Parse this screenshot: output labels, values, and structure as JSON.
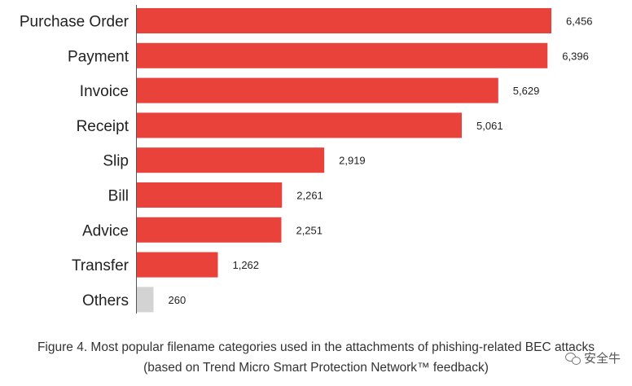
{
  "chart_data": {
    "type": "bar",
    "orientation": "horizontal",
    "categories": [
      "Purchase Order",
      "Payment",
      "Invoice",
      "Receipt",
      "Slip",
      "Bill",
      "Advice",
      "Transfer",
      "Others"
    ],
    "values": [
      6456,
      6396,
      5629,
      5061,
      2919,
      2261,
      2251,
      1262,
      260
    ],
    "value_labels": [
      "6,456",
      "6,396",
      "5,629",
      "5,061",
      "2,919",
      "2,261",
      "2,251",
      "1,262",
      "260"
    ],
    "colors": [
      "#e8423b",
      "#e8423b",
      "#e8423b",
      "#e8423b",
      "#e8423b",
      "#e8423b",
      "#e8423b",
      "#e8423b",
      "#d3d3d3"
    ],
    "xlim": [
      0,
      6456
    ],
    "grid": false,
    "legend": false
  },
  "caption": {
    "line1": "Figure 4. Most popular filename categories used in the attachments of phishing-related BEC attacks",
    "line2": "(based on Trend Micro Smart Protection Network™ feedback)"
  },
  "watermark": {
    "text": "安全牛",
    "icon": "wechat-icon"
  }
}
